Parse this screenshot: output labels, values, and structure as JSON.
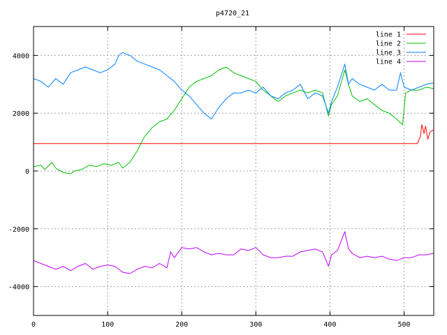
{
  "chart_data": {
    "type": "line",
    "title": "p4720_21",
    "xlabel": "",
    "ylabel": "",
    "xlim": [
      0,
      540
    ],
    "ylim": [
      -5000,
      5000
    ],
    "x_ticks": [
      0,
      100,
      200,
      300,
      400,
      500
    ],
    "y_ticks": [
      -4000,
      -2000,
      0,
      2000,
      4000
    ],
    "grid": true,
    "legend_position": "top-right",
    "series": [
      {
        "name": "line 1",
        "color": "#ff0000",
        "points": [
          [
            0,
            950
          ],
          [
            100,
            950
          ],
          [
            200,
            950
          ],
          [
            300,
            950
          ],
          [
            400,
            950
          ],
          [
            500,
            950
          ],
          [
            518,
            950
          ],
          [
            522,
            1200
          ],
          [
            524,
            1600
          ],
          [
            527,
            1300
          ],
          [
            529,
            1550
          ],
          [
            532,
            1100
          ],
          [
            535,
            1350
          ],
          [
            538,
            1400
          ],
          [
            540,
            1420
          ]
        ]
      },
      {
        "name": "line 2",
        "color": "#00c000",
        "points": [
          [
            0,
            150
          ],
          [
            10,
            200
          ],
          [
            15,
            50
          ],
          [
            25,
            300
          ],
          [
            30,
            100
          ],
          [
            40,
            -50
          ],
          [
            50,
            -100
          ],
          [
            55,
            0
          ],
          [
            65,
            50
          ],
          [
            75,
            200
          ],
          [
            85,
            150
          ],
          [
            95,
            250
          ],
          [
            105,
            200
          ],
          [
            115,
            300
          ],
          [
            120,
            100
          ],
          [
            130,
            300
          ],
          [
            140,
            700
          ],
          [
            150,
            1200
          ],
          [
            160,
            1500
          ],
          [
            170,
            1700
          ],
          [
            180,
            1800
          ],
          [
            190,
            2100
          ],
          [
            200,
            2500
          ],
          [
            210,
            2900
          ],
          [
            220,
            3100
          ],
          [
            230,
            3200
          ],
          [
            240,
            3300
          ],
          [
            250,
            3500
          ],
          [
            260,
            3600
          ],
          [
            270,
            3400
          ],
          [
            280,
            3300
          ],
          [
            290,
            3200
          ],
          [
            300,
            3100
          ],
          [
            310,
            2800
          ],
          [
            320,
            2600
          ],
          [
            330,
            2400
          ],
          [
            340,
            2600
          ],
          [
            350,
            2700
          ],
          [
            360,
            2800
          ],
          [
            370,
            2700
          ],
          [
            380,
            2800
          ],
          [
            390,
            2700
          ],
          [
            398,
            1900
          ],
          [
            402,
            2300
          ],
          [
            410,
            2600
          ],
          [
            420,
            3500
          ],
          [
            425,
            3000
          ],
          [
            430,
            2600
          ],
          [
            440,
            2400
          ],
          [
            450,
            2500
          ],
          [
            460,
            2300
          ],
          [
            470,
            2100
          ],
          [
            480,
            2000
          ],
          [
            490,
            1800
          ],
          [
            498,
            1600
          ],
          [
            502,
            2700
          ],
          [
            510,
            2800
          ],
          [
            520,
            2800
          ],
          [
            530,
            2900
          ],
          [
            540,
            2850
          ]
        ]
      },
      {
        "name": "line 3",
        "color": "#0080ff",
        "points": [
          [
            0,
            3200
          ],
          [
            10,
            3100
          ],
          [
            20,
            2900
          ],
          [
            30,
            3200
          ],
          [
            40,
            3000
          ],
          [
            50,
            3400
          ],
          [
            60,
            3500
          ],
          [
            70,
            3600
          ],
          [
            80,
            3500
          ],
          [
            90,
            3400
          ],
          [
            100,
            3500
          ],
          [
            110,
            3700
          ],
          [
            115,
            4000
          ],
          [
            120,
            4100
          ],
          [
            130,
            4000
          ],
          [
            140,
            3800
          ],
          [
            150,
            3700
          ],
          [
            160,
            3600
          ],
          [
            170,
            3500
          ],
          [
            180,
            3300
          ],
          [
            190,
            3100
          ],
          [
            200,
            2800
          ],
          [
            210,
            2600
          ],
          [
            220,
            2300
          ],
          [
            230,
            2000
          ],
          [
            240,
            1800
          ],
          [
            250,
            2200
          ],
          [
            260,
            2500
          ],
          [
            270,
            2700
          ],
          [
            280,
            2700
          ],
          [
            290,
            2800
          ],
          [
            300,
            2700
          ],
          [
            310,
            2900
          ],
          [
            320,
            2600
          ],
          [
            330,
            2500
          ],
          [
            340,
            2700
          ],
          [
            350,
            2800
          ],
          [
            360,
            3000
          ],
          [
            370,
            2500
          ],
          [
            380,
            2700
          ],
          [
            390,
            2600
          ],
          [
            398,
            2000
          ],
          [
            402,
            2400
          ],
          [
            410,
            2900
          ],
          [
            420,
            3700
          ],
          [
            425,
            3000
          ],
          [
            430,
            3200
          ],
          [
            440,
            3000
          ],
          [
            450,
            2900
          ],
          [
            460,
            2800
          ],
          [
            470,
            3000
          ],
          [
            480,
            2800
          ],
          [
            490,
            2800
          ],
          [
            495,
            3400
          ],
          [
            500,
            2900
          ],
          [
            510,
            2800
          ],
          [
            520,
            2900
          ],
          [
            530,
            3000
          ],
          [
            540,
            3050
          ]
        ]
      },
      {
        "name": "line 4",
        "color": "#c000ff",
        "points": [
          [
            0,
            -3100
          ],
          [
            10,
            -3200
          ],
          [
            20,
            -3300
          ],
          [
            30,
            -3400
          ],
          [
            40,
            -3300
          ],
          [
            50,
            -3450
          ],
          [
            60,
            -3300
          ],
          [
            70,
            -3200
          ],
          [
            80,
            -3400
          ],
          [
            90,
            -3300
          ],
          [
            100,
            -3250
          ],
          [
            110,
            -3300
          ],
          [
            120,
            -3500
          ],
          [
            130,
            -3550
          ],
          [
            140,
            -3400
          ],
          [
            150,
            -3300
          ],
          [
            160,
            -3350
          ],
          [
            170,
            -3200
          ],
          [
            180,
            -3350
          ],
          [
            185,
            -2800
          ],
          [
            190,
            -3000
          ],
          [
            200,
            -2650
          ],
          [
            210,
            -2700
          ],
          [
            220,
            -2650
          ],
          [
            230,
            -2800
          ],
          [
            240,
            -2900
          ],
          [
            250,
            -2850
          ],
          [
            260,
            -2900
          ],
          [
            270,
            -2900
          ],
          [
            280,
            -2700
          ],
          [
            290,
            -2750
          ],
          [
            300,
            -2650
          ],
          [
            310,
            -2900
          ],
          [
            320,
            -3000
          ],
          [
            330,
            -3000
          ],
          [
            340,
            -2950
          ],
          [
            350,
            -2950
          ],
          [
            360,
            -2800
          ],
          [
            370,
            -2750
          ],
          [
            380,
            -2700
          ],
          [
            390,
            -2800
          ],
          [
            398,
            -3300
          ],
          [
            402,
            -2900
          ],
          [
            410,
            -2750
          ],
          [
            420,
            -2100
          ],
          [
            425,
            -2700
          ],
          [
            430,
            -2850
          ],
          [
            440,
            -3000
          ],
          [
            450,
            -2950
          ],
          [
            460,
            -3000
          ],
          [
            470,
            -2950
          ],
          [
            480,
            -3050
          ],
          [
            490,
            -3100
          ],
          [
            500,
            -3000
          ],
          [
            510,
            -3000
          ],
          [
            520,
            -2900
          ],
          [
            530,
            -2900
          ],
          [
            540,
            -2850
          ]
        ]
      }
    ]
  }
}
